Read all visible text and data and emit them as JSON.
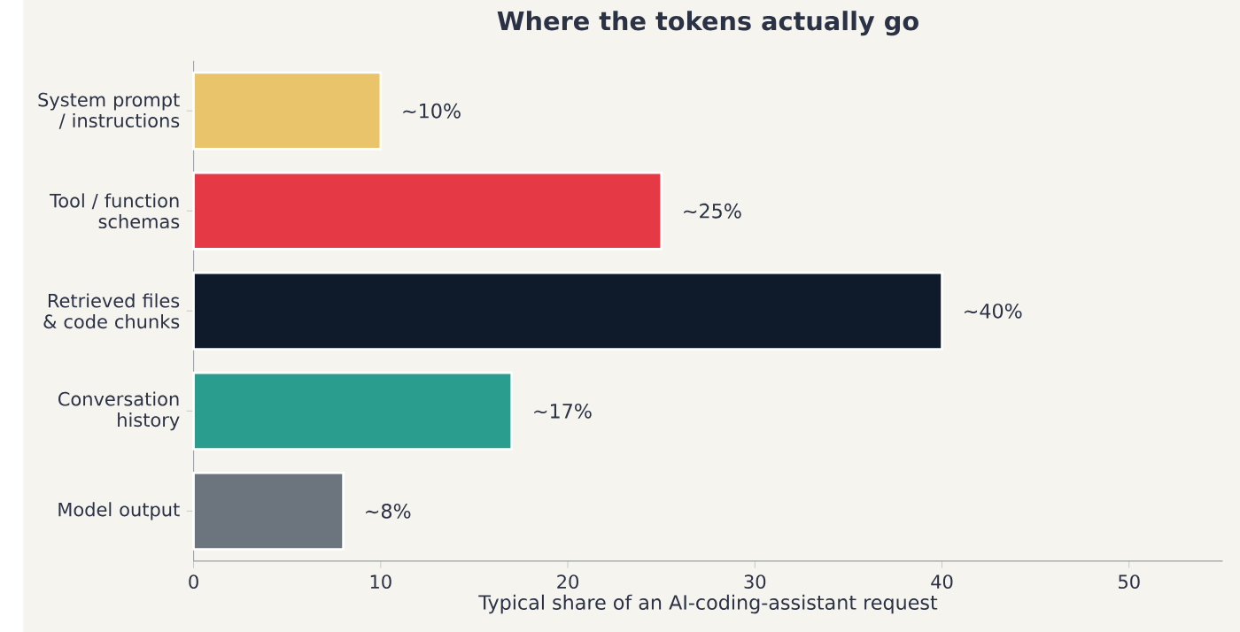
{
  "chart_data": {
    "type": "bar",
    "orientation": "horizontal",
    "title": "Where the tokens actually go",
    "xlabel": "Typical share of an AI-coding-assistant request",
    "categories": [
      "System prompt / instructions",
      "Tool / function schemas",
      "Retrieved files & code chunks",
      "Conversation history",
      "Model output"
    ],
    "values": [
      10,
      25,
      40,
      17,
      8
    ],
    "colors": [
      "#e9c46a",
      "#e63946",
      "#0f1b2a",
      "#2a9d8f",
      "#6c757d"
    ],
    "value_labels": [
      "~10%",
      "~25%",
      "~40%",
      "~17%",
      "~8%"
    ],
    "xlim": [
      0,
      55
    ],
    "xticks": [
      0,
      10,
      20,
      30,
      40,
      50
    ],
    "grid": false
  }
}
